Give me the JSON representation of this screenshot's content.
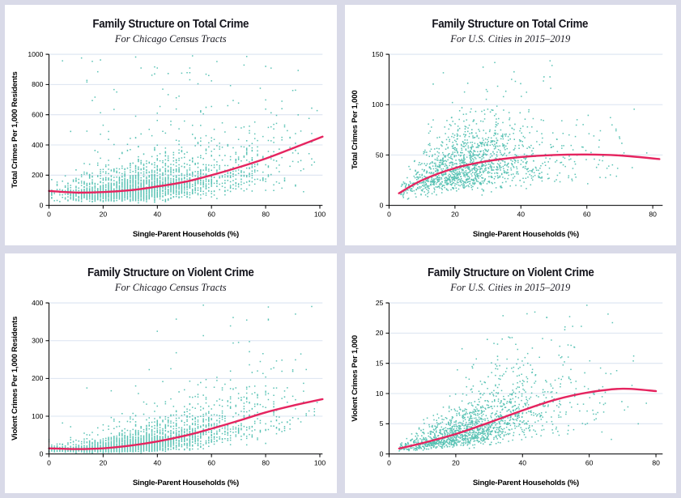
{
  "page": {
    "background": "#d9dae8",
    "panel_background": "#ffffff"
  },
  "style": {
    "point_color": "#2fb3a1",
    "line_color": "#e5245f",
    "grid_color": "#dbe4f1",
    "axis_color": "#000000",
    "title_color": "#14141c"
  },
  "chart_data": [
    {
      "type": "scatter",
      "title": "Family Structure on Total Crime",
      "subtitle": "For Chicago Census Tracts",
      "xlabel": "Single-Parent Households (%)",
      "ylabel": "Total Crimes Per 1,000 Residents",
      "xlim": [
        0,
        101
      ],
      "ylim": [
        0,
        1000
      ],
      "xticks": [
        0,
        20,
        40,
        60,
        80,
        100
      ],
      "yticks": [
        0,
        200,
        400,
        600,
        800,
        1000
      ],
      "legend": "none",
      "grid": "horizontal",
      "trend": {
        "x": [
          0,
          10,
          20,
          30,
          40,
          50,
          60,
          70,
          80,
          90,
          101
        ],
        "y": [
          95,
          85,
          88,
          100,
          125,
          155,
          200,
          252,
          310,
          378,
          455
        ]
      },
      "scatter": {
        "n": 2700,
        "x_mean": 30,
        "x_sd": 13,
        "x2_p": 0.25,
        "x2_mean": 60,
        "x2_sd": 19,
        "x_min": 0,
        "x_max": 100,
        "y_sigma": 0.5,
        "outlier_p": 0.025,
        "outlier_lo": 3,
        "outlier_hi": 9,
        "y_floor": 10,
        "round_x": 1,
        "seed": 7
      }
    },
    {
      "type": "scatter",
      "title": "Family Structure on Total Crime",
      "subtitle": "For U.S. Cities in 2015–2019",
      "xlabel": "Single-Parent Households (%)",
      "ylabel": "Total Crimes Per 1,000",
      "xlim": [
        0,
        83
      ],
      "ylim": [
        0,
        150
      ],
      "xticks": [
        0,
        20,
        40,
        60,
        80
      ],
      "yticks": [
        0,
        50,
        100,
        150
      ],
      "legend": "none",
      "grid": "horizontal",
      "trend": {
        "x": [
          3,
          10,
          20,
          30,
          40,
          50,
          60,
          70,
          82
        ],
        "y": [
          12,
          25,
          37,
          44,
          48,
          50,
          50.5,
          49.5,
          46
        ]
      },
      "scatter": {
        "n": 1500,
        "x_mean": 22,
        "x_sd": 10,
        "x2_p": 0.14,
        "x2_mean": 45,
        "x2_sd": 14,
        "x_min": 3,
        "x_max": 80,
        "y_sigma": 0.4,
        "outlier_p": 0.02,
        "outlier_lo": 1.6,
        "outlier_hi": 2.6,
        "y_floor": 5,
        "round_x": 0,
        "seed": 13
      }
    },
    {
      "type": "scatter",
      "title": "Family Structure on Violent Crime",
      "subtitle": "For Chicago Census Tracts",
      "xlabel": "Single-Parent Households (%)",
      "ylabel": "Violent Crimes Per 1,000 Residents",
      "xlim": [
        0,
        101
      ],
      "ylim": [
        0,
        400
      ],
      "xticks": [
        0,
        20,
        40,
        60,
        80,
        100
      ],
      "yticks": [
        0,
        100,
        200,
        300,
        400
      ],
      "legend": "none",
      "grid": "horizontal",
      "trend": {
        "x": [
          0,
          10,
          20,
          30,
          40,
          50,
          60,
          70,
          80,
          90,
          101
        ],
        "y": [
          15,
          13,
          15,
          22,
          33,
          48,
          67,
          88,
          110,
          128,
          145
        ]
      },
      "scatter": {
        "n": 2700,
        "x_mean": 30,
        "x_sd": 13,
        "x2_p": 0.25,
        "x2_mean": 60,
        "x2_sd": 19,
        "x_min": 0,
        "x_max": 100,
        "y_sigma": 0.55,
        "outlier_p": 0.02,
        "outlier_lo": 2.2,
        "outlier_hi": 4.2,
        "y_floor": 4,
        "round_x": 1,
        "seed": 21
      }
    },
    {
      "type": "scatter",
      "title": "Family Structure on Violent Crime",
      "subtitle": "For U.S. Cities in 2015–2019",
      "xlabel": "Single-Parent Households (%)",
      "ylabel": "Violent Crimes Per 1,000",
      "xlim": [
        0,
        82
      ],
      "ylim": [
        0,
        25
      ],
      "xticks": [
        0,
        20,
        40,
        60,
        80
      ],
      "yticks": [
        0,
        5,
        10,
        15,
        20,
        25
      ],
      "legend": "none",
      "grid": "horizontal",
      "trend": {
        "x": [
          3,
          10,
          20,
          30,
          40,
          50,
          60,
          70,
          80
        ],
        "y": [
          0.9,
          1.8,
          3.3,
          5.2,
          7.2,
          9.0,
          10.2,
          10.8,
          10.4
        ]
      },
      "scatter": {
        "n": 1500,
        "x_mean": 24,
        "x_sd": 11,
        "x2_p": 0.14,
        "x2_mean": 48,
        "x2_sd": 13,
        "x_min": 3,
        "x_max": 80,
        "y_sigma": 0.48,
        "outlier_p": 0.02,
        "outlier_lo": 1.5,
        "outlier_hi": 2.2,
        "y_floor": 0.5,
        "round_x": 0,
        "seed": 29
      }
    }
  ]
}
